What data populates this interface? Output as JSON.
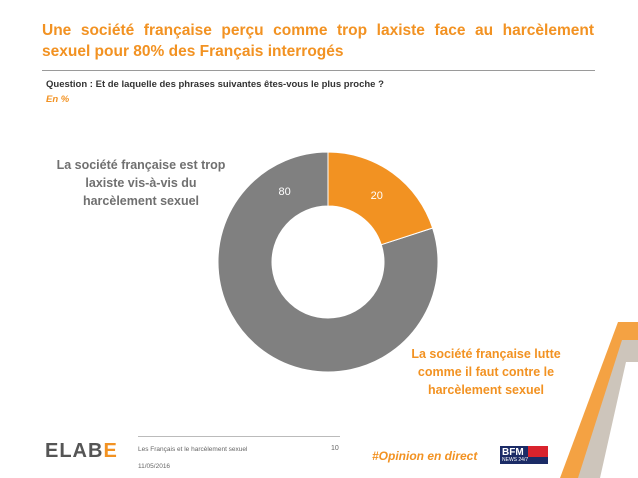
{
  "title": "Une société française perçu comme trop laxiste face au harcèlement sexuel pour 80% des Français interrogés",
  "question": "Question : Et de laquelle des phrases suivantes êtes-vous le plus proche ?",
  "unit": "En %",
  "chart_data": {
    "type": "pie",
    "style": "donut",
    "slices": [
      {
        "label": "La société française est trop laxiste vis-à-vis du harcèlement sexuel",
        "value": 80,
        "color": "#808080"
      },
      {
        "label": "La société française lutte comme il faut contre le harcèlement sexuel",
        "value": 20,
        "color": "#f29222"
      }
    ],
    "start": "top",
    "direction": "counter-clockwise",
    "legend": "none"
  },
  "footer": {
    "logo_main": "ELAB",
    "logo_accent": "E",
    "text": "Les Français et le harcèlement sexuel",
    "date": "11/05/2016",
    "page": "10",
    "hashtag": "#Opinion en direct",
    "bfm_logo": "BFM",
    "bfm_sub": "NEWS 24/7"
  },
  "colors": {
    "accent": "#f29222",
    "gray": "#808080"
  }
}
